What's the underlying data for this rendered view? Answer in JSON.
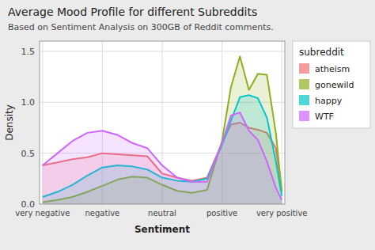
{
  "chart_data": {
    "type": "area",
    "title": "Average Mood Profile for different Subreddits",
    "subtitle": "Based on Sentiment Analysis on 300GB of Reddit comments.",
    "x_label": "Sentiment",
    "y_label": "Density",
    "legend_title": "subreddit",
    "legend": "right",
    "grid": true,
    "x": [
      0.0,
      0.25,
      0.5,
      0.75,
      1.0,
      1.25,
      1.5,
      1.75,
      2.0,
      2.25,
      2.5,
      2.75,
      3.0,
      3.15,
      3.3,
      3.45,
      3.6,
      3.75,
      3.9,
      4.0
    ],
    "xlim": [
      -0.05,
      4.05
    ],
    "xticks": [
      {
        "value": 0,
        "label": "very negative"
      },
      {
        "value": 1,
        "label": "negative"
      },
      {
        "value": 2,
        "label": "neutral"
      },
      {
        "value": 3,
        "label": "positive"
      },
      {
        "value": 4,
        "label": "very positive"
      }
    ],
    "ylim": [
      0,
      1.6
    ],
    "yticks": [
      {
        "value": 0,
        "label": "0.0"
      },
      0.5,
      {
        "value": 1,
        "label": "1.0"
      },
      1.5
    ],
    "series": [
      {
        "name": "atheism",
        "color": "#f07070",
        "values": [
          0.38,
          0.41,
          0.44,
          0.46,
          0.5,
          0.49,
          0.48,
          0.47,
          0.3,
          0.26,
          0.23,
          0.26,
          0.6,
          0.78,
          0.8,
          0.75,
          0.73,
          0.7,
          0.55,
          0.12
        ]
      },
      {
        "name": "gonewild",
        "color": "#8db020",
        "values": [
          0.02,
          0.04,
          0.07,
          0.12,
          0.18,
          0.24,
          0.27,
          0.26,
          0.19,
          0.13,
          0.11,
          0.14,
          0.62,
          1.15,
          1.45,
          1.12,
          1.28,
          1.27,
          0.7,
          0.12
        ]
      },
      {
        "name": "happy",
        "color": "#00c8c8",
        "values": [
          0.07,
          0.12,
          0.19,
          0.28,
          0.36,
          0.38,
          0.37,
          0.34,
          0.26,
          0.23,
          0.22,
          0.25,
          0.58,
          0.82,
          1.05,
          1.07,
          1.04,
          0.85,
          0.42,
          0.08
        ]
      },
      {
        "name": "WTF",
        "color": "#cc66ff",
        "values": [
          0.38,
          0.5,
          0.62,
          0.7,
          0.72,
          0.68,
          0.6,
          0.55,
          0.38,
          0.26,
          0.22,
          0.22,
          0.6,
          0.87,
          0.9,
          0.72,
          0.63,
          0.42,
          0.16,
          0.04
        ]
      }
    ]
  }
}
